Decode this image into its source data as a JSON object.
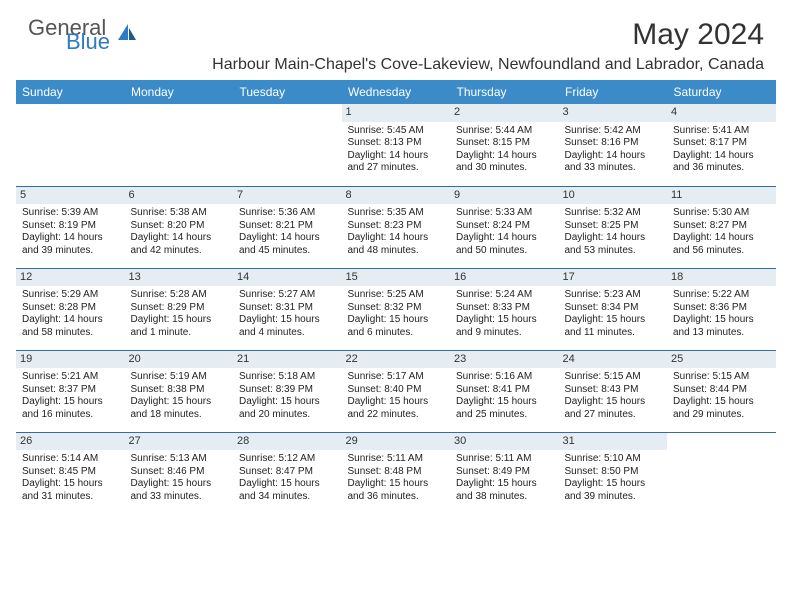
{
  "logo": {
    "text1": "General",
    "text2": "Blue"
  },
  "title": "May 2024",
  "location": "Harbour Main-Chapel's Cove-Lakeview, Newfoundland and Labrador, Canada",
  "colors": {
    "header_bg": "#3b8bc9",
    "row_border": "#2f6fa8",
    "daynum_bg": "#e6edf2",
    "logo_blue": "#2f7bc2"
  },
  "weekdays": [
    "Sunday",
    "Monday",
    "Tuesday",
    "Wednesday",
    "Thursday",
    "Friday",
    "Saturday"
  ],
  "cells": [
    {
      "empty": true
    },
    {
      "empty": true
    },
    {
      "empty": true
    },
    {
      "day": "1",
      "sunrise": "Sunrise: 5:45 AM",
      "sunset": "Sunset: 8:13 PM",
      "dl1": "Daylight: 14 hours",
      "dl2": "and 27 minutes."
    },
    {
      "day": "2",
      "sunrise": "Sunrise: 5:44 AM",
      "sunset": "Sunset: 8:15 PM",
      "dl1": "Daylight: 14 hours",
      "dl2": "and 30 minutes."
    },
    {
      "day": "3",
      "sunrise": "Sunrise: 5:42 AM",
      "sunset": "Sunset: 8:16 PM",
      "dl1": "Daylight: 14 hours",
      "dl2": "and 33 minutes."
    },
    {
      "day": "4",
      "sunrise": "Sunrise: 5:41 AM",
      "sunset": "Sunset: 8:17 PM",
      "dl1": "Daylight: 14 hours",
      "dl2": "and 36 minutes."
    },
    {
      "day": "5",
      "sunrise": "Sunrise: 5:39 AM",
      "sunset": "Sunset: 8:19 PM",
      "dl1": "Daylight: 14 hours",
      "dl2": "and 39 minutes."
    },
    {
      "day": "6",
      "sunrise": "Sunrise: 5:38 AM",
      "sunset": "Sunset: 8:20 PM",
      "dl1": "Daylight: 14 hours",
      "dl2": "and 42 minutes."
    },
    {
      "day": "7",
      "sunrise": "Sunrise: 5:36 AM",
      "sunset": "Sunset: 8:21 PM",
      "dl1": "Daylight: 14 hours",
      "dl2": "and 45 minutes."
    },
    {
      "day": "8",
      "sunrise": "Sunrise: 5:35 AM",
      "sunset": "Sunset: 8:23 PM",
      "dl1": "Daylight: 14 hours",
      "dl2": "and 48 minutes."
    },
    {
      "day": "9",
      "sunrise": "Sunrise: 5:33 AM",
      "sunset": "Sunset: 8:24 PM",
      "dl1": "Daylight: 14 hours",
      "dl2": "and 50 minutes."
    },
    {
      "day": "10",
      "sunrise": "Sunrise: 5:32 AM",
      "sunset": "Sunset: 8:25 PM",
      "dl1": "Daylight: 14 hours",
      "dl2": "and 53 minutes."
    },
    {
      "day": "11",
      "sunrise": "Sunrise: 5:30 AM",
      "sunset": "Sunset: 8:27 PM",
      "dl1": "Daylight: 14 hours",
      "dl2": "and 56 minutes."
    },
    {
      "day": "12",
      "sunrise": "Sunrise: 5:29 AM",
      "sunset": "Sunset: 8:28 PM",
      "dl1": "Daylight: 14 hours",
      "dl2": "and 58 minutes."
    },
    {
      "day": "13",
      "sunrise": "Sunrise: 5:28 AM",
      "sunset": "Sunset: 8:29 PM",
      "dl1": "Daylight: 15 hours",
      "dl2": "and 1 minute."
    },
    {
      "day": "14",
      "sunrise": "Sunrise: 5:27 AM",
      "sunset": "Sunset: 8:31 PM",
      "dl1": "Daylight: 15 hours",
      "dl2": "and 4 minutes."
    },
    {
      "day": "15",
      "sunrise": "Sunrise: 5:25 AM",
      "sunset": "Sunset: 8:32 PM",
      "dl1": "Daylight: 15 hours",
      "dl2": "and 6 minutes."
    },
    {
      "day": "16",
      "sunrise": "Sunrise: 5:24 AM",
      "sunset": "Sunset: 8:33 PM",
      "dl1": "Daylight: 15 hours",
      "dl2": "and 9 minutes."
    },
    {
      "day": "17",
      "sunrise": "Sunrise: 5:23 AM",
      "sunset": "Sunset: 8:34 PM",
      "dl1": "Daylight: 15 hours",
      "dl2": "and 11 minutes."
    },
    {
      "day": "18",
      "sunrise": "Sunrise: 5:22 AM",
      "sunset": "Sunset: 8:36 PM",
      "dl1": "Daylight: 15 hours",
      "dl2": "and 13 minutes."
    },
    {
      "day": "19",
      "sunrise": "Sunrise: 5:21 AM",
      "sunset": "Sunset: 8:37 PM",
      "dl1": "Daylight: 15 hours",
      "dl2": "and 16 minutes."
    },
    {
      "day": "20",
      "sunrise": "Sunrise: 5:19 AM",
      "sunset": "Sunset: 8:38 PM",
      "dl1": "Daylight: 15 hours",
      "dl2": "and 18 minutes."
    },
    {
      "day": "21",
      "sunrise": "Sunrise: 5:18 AM",
      "sunset": "Sunset: 8:39 PM",
      "dl1": "Daylight: 15 hours",
      "dl2": "and 20 minutes."
    },
    {
      "day": "22",
      "sunrise": "Sunrise: 5:17 AM",
      "sunset": "Sunset: 8:40 PM",
      "dl1": "Daylight: 15 hours",
      "dl2": "and 22 minutes."
    },
    {
      "day": "23",
      "sunrise": "Sunrise: 5:16 AM",
      "sunset": "Sunset: 8:41 PM",
      "dl1": "Daylight: 15 hours",
      "dl2": "and 25 minutes."
    },
    {
      "day": "24",
      "sunrise": "Sunrise: 5:15 AM",
      "sunset": "Sunset: 8:43 PM",
      "dl1": "Daylight: 15 hours",
      "dl2": "and 27 minutes."
    },
    {
      "day": "25",
      "sunrise": "Sunrise: 5:15 AM",
      "sunset": "Sunset: 8:44 PM",
      "dl1": "Daylight: 15 hours",
      "dl2": "and 29 minutes."
    },
    {
      "day": "26",
      "sunrise": "Sunrise: 5:14 AM",
      "sunset": "Sunset: 8:45 PM",
      "dl1": "Daylight: 15 hours",
      "dl2": "and 31 minutes."
    },
    {
      "day": "27",
      "sunrise": "Sunrise: 5:13 AM",
      "sunset": "Sunset: 8:46 PM",
      "dl1": "Daylight: 15 hours",
      "dl2": "and 33 minutes."
    },
    {
      "day": "28",
      "sunrise": "Sunrise: 5:12 AM",
      "sunset": "Sunset: 8:47 PM",
      "dl1": "Daylight: 15 hours",
      "dl2": "and 34 minutes."
    },
    {
      "day": "29",
      "sunrise": "Sunrise: 5:11 AM",
      "sunset": "Sunset: 8:48 PM",
      "dl1": "Daylight: 15 hours",
      "dl2": "and 36 minutes."
    },
    {
      "day": "30",
      "sunrise": "Sunrise: 5:11 AM",
      "sunset": "Sunset: 8:49 PM",
      "dl1": "Daylight: 15 hours",
      "dl2": "and 38 minutes."
    },
    {
      "day": "31",
      "sunrise": "Sunrise: 5:10 AM",
      "sunset": "Sunset: 8:50 PM",
      "dl1": "Daylight: 15 hours",
      "dl2": "and 39 minutes."
    },
    {
      "empty": true
    }
  ]
}
